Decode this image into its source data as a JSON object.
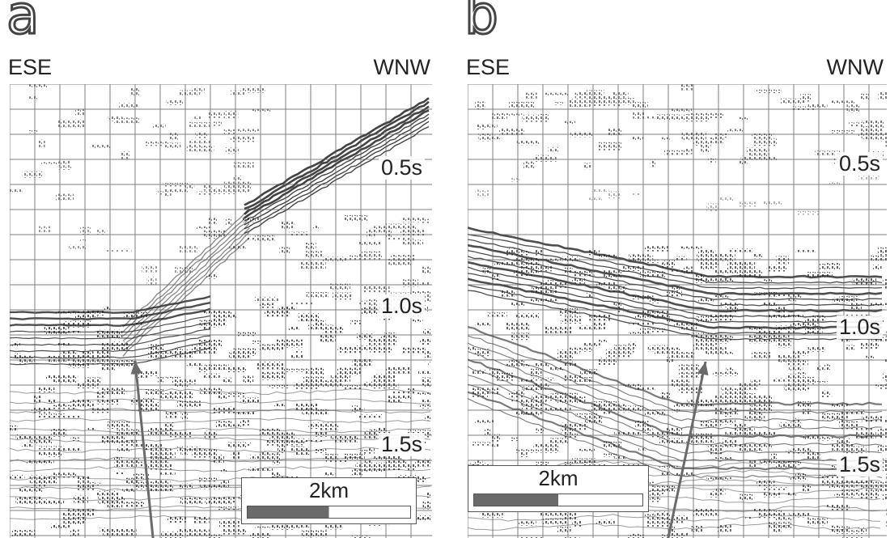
{
  "panels": [
    {
      "letter": "a",
      "left_direction": "ESE",
      "right_direction": "WNW",
      "time_labels": [
        "0.5s",
        "1.0s",
        "1.5s"
      ],
      "scale_bar": "2km"
    },
    {
      "letter": "b",
      "left_direction": "ESE",
      "right_direction": "WNW",
      "time_labels": [
        "0.5s",
        "1.0s",
        "1.5s"
      ],
      "scale_bar": "2km"
    }
  ],
  "colors": {
    "ink": "#222222",
    "grid": "#555555",
    "arrow": "#6a6a6a"
  }
}
